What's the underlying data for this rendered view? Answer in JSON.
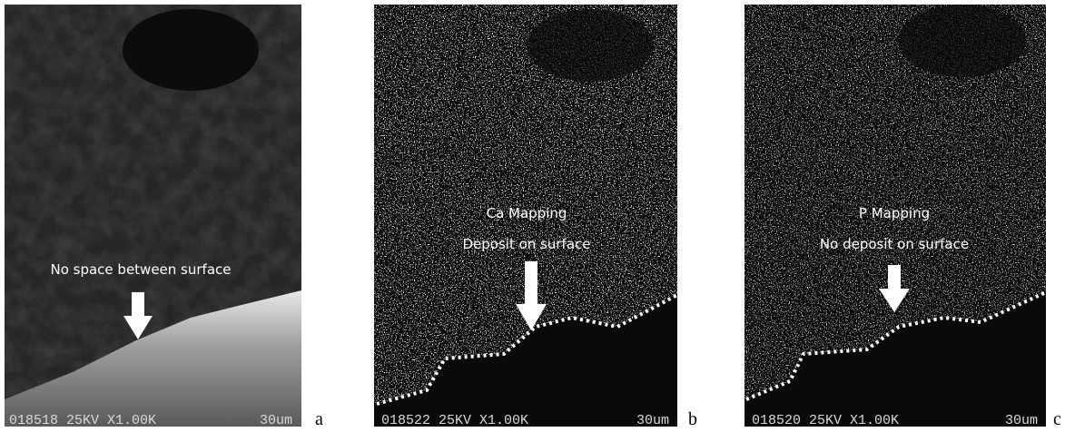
{
  "panels": [
    {
      "letter": "a",
      "overlay": [
        "No space between surface"
      ],
      "footer": {
        "code": "018518 25KV X1.00K",
        "scale": "30um"
      }
    },
    {
      "letter": "b",
      "overlay": [
        "Ca Mapping",
        "Deposit on surface"
      ],
      "footer": {
        "code": "018522 25KV X1.00K",
        "scale": "30um"
      }
    },
    {
      "letter": "c",
      "overlay": [
        "P Mapping",
        "No deposit on surface"
      ],
      "footer": {
        "code": "018520 25KV X1.00K",
        "scale": "30um"
      }
    }
  ]
}
